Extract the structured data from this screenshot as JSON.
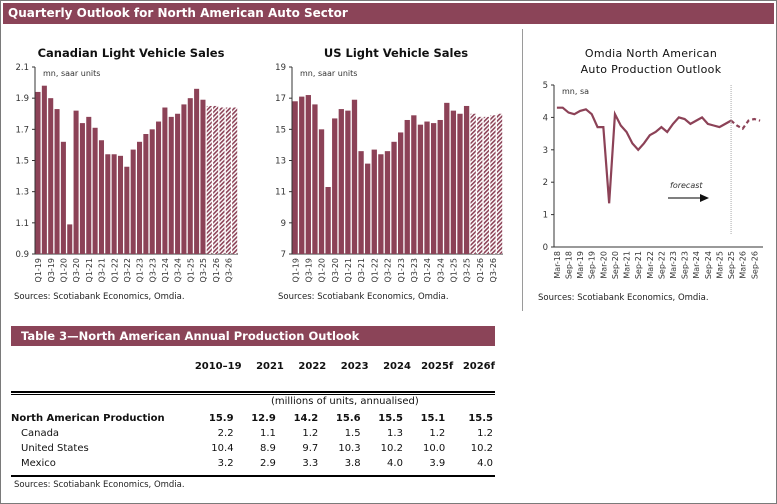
{
  "header": {
    "title": "Quarterly Outlook for North American Auto Sector"
  },
  "colors": {
    "brand": "#8b4458",
    "bar": "#8c4257"
  },
  "chart_data": [
    {
      "type": "bar",
      "title": "Canadian Light Vehicle Sales",
      "unit_label": "mn, saar units",
      "categories": [
        "Q1-19",
        "Q2-19",
        "Q3-19",
        "Q4-19",
        "Q1-20",
        "Q2-20",
        "Q3-20",
        "Q4-20",
        "Q1-21",
        "Q2-21",
        "Q3-21",
        "Q4-21",
        "Q1-22",
        "Q2-22",
        "Q3-22",
        "Q4-22",
        "Q1-23",
        "Q2-23",
        "Q3-23",
        "Q4-23",
        "Q1-24",
        "Q2-24",
        "Q3-24",
        "Q4-24",
        "Q1-25",
        "Q2-25",
        "Q3-25",
        "Q4-25",
        "Q1-26",
        "Q2-26",
        "Q3-26",
        "Q4-26"
      ],
      "tick_labels": [
        "Q1-19",
        "Q3-19",
        "Q1-20",
        "Q3-20",
        "Q1-21",
        "Q3-21",
        "Q1-22",
        "Q3-22",
        "Q1-23",
        "Q3-23",
        "Q1-24",
        "Q3-24",
        "Q1-25",
        "Q3-25",
        "Q1-26",
        "Q3-26"
      ],
      "values": [
        1.94,
        1.98,
        1.9,
        1.83,
        1.62,
        1.09,
        1.82,
        1.74,
        1.78,
        1.71,
        1.63,
        1.54,
        1.54,
        1.53,
        1.46,
        1.57,
        1.62,
        1.67,
        1.7,
        1.75,
        1.84,
        1.78,
        1.8,
        1.86,
        1.9,
        1.96,
        1.89,
        1.85,
        1.85,
        1.84,
        1.84,
        1.84
      ],
      "forecast_from": "Q4-25",
      "ylim": [
        0.9,
        2.1
      ],
      "yticks": [
        "0.9",
        "1.1",
        "1.3",
        "1.5",
        "1.7",
        "1.9",
        "2.1"
      ],
      "source": "Sources: Scotiabank Economics, Omdia."
    },
    {
      "type": "bar",
      "title": "US Light Vehicle Sales",
      "unit_label": "mn, saar units",
      "categories": [
        "Q1-19",
        "Q2-19",
        "Q3-19",
        "Q4-19",
        "Q1-20",
        "Q2-20",
        "Q3-20",
        "Q4-20",
        "Q1-21",
        "Q2-21",
        "Q3-21",
        "Q4-21",
        "Q1-22",
        "Q2-22",
        "Q3-22",
        "Q4-22",
        "Q1-23",
        "Q2-23",
        "Q3-23",
        "Q4-23",
        "Q1-24",
        "Q2-24",
        "Q3-24",
        "Q4-24",
        "Q1-25",
        "Q2-25",
        "Q3-25",
        "Q4-25",
        "Q1-26",
        "Q2-26",
        "Q3-26",
        "Q4-26"
      ],
      "tick_labels": [
        "Q1-19",
        "Q3-19",
        "Q1-20",
        "Q3-20",
        "Q1-21",
        "Q3-21",
        "Q1-22",
        "Q3-22",
        "Q1-23",
        "Q3-23",
        "Q1-24",
        "Q3-24",
        "Q1-25",
        "Q3-25",
        "Q1-26",
        "Q3-26"
      ],
      "values": [
        16.8,
        17.1,
        17.2,
        16.6,
        15.0,
        11.3,
        15.7,
        16.3,
        16.2,
        16.9,
        13.6,
        12.8,
        13.7,
        13.4,
        13.6,
        14.2,
        14.8,
        15.6,
        15.9,
        15.3,
        15.5,
        15.4,
        15.6,
        16.7,
        16.2,
        16.0,
        16.5,
        16.0,
        15.8,
        15.8,
        15.9,
        16.0
      ],
      "forecast_from": "Q4-25",
      "ylim": [
        7,
        19
      ],
      "yticks": [
        "7",
        "9",
        "11",
        "13",
        "15",
        "17",
        "19"
      ],
      "source": "Sources: Scotiabank Economics, Omdia."
    },
    {
      "type": "line",
      "title": [
        "Omdia North American",
        "Auto Production Outlook"
      ],
      "unit_label": "mn, sa",
      "x": [
        "Mar-18",
        "Jun-18",
        "Sep-18",
        "Dec-18",
        "Mar-19",
        "Jun-19",
        "Sep-19",
        "Dec-19",
        "Mar-20",
        "Jun-20",
        "Sep-20",
        "Dec-20",
        "Mar-21",
        "Jun-21",
        "Sep-21",
        "Dec-21",
        "Mar-22",
        "Jun-22",
        "Sep-22",
        "Dec-22",
        "Mar-23",
        "Jun-23",
        "Sep-23",
        "Dec-23",
        "Mar-24",
        "Jun-24",
        "Sep-24",
        "Dec-24",
        "Mar-25",
        "Jun-25",
        "Sep-25",
        "Dec-25",
        "Mar-26",
        "Jun-26",
        "Sep-26",
        "Dec-26"
      ],
      "values": [
        4.3,
        4.3,
        4.15,
        4.1,
        4.2,
        4.25,
        4.1,
        3.7,
        3.7,
        1.35,
        4.1,
        3.75,
        3.55,
        3.2,
        3.0,
        3.2,
        3.45,
        3.55,
        3.7,
        3.55,
        3.8,
        4.0,
        3.95,
        3.8,
        3.9,
        4.0,
        3.8,
        3.75,
        3.7,
        3.8,
        3.9,
        3.75,
        3.65,
        3.9,
        3.95,
        3.9
      ],
      "forecast_from": "Sep-25",
      "tick_labels": [
        "Mar-18",
        "Sep-18",
        "Mar-19",
        "Sep-19",
        "Mar-20",
        "Sep-20",
        "Mar-21",
        "Sep-21",
        "Mar-22",
        "Sep-22",
        "Mar-23",
        "Sep-23",
        "Mar-24",
        "Sep-24",
        "Mar-25",
        "Sep-25",
        "Mar-26",
        "Sep-26"
      ],
      "ylim": [
        0,
        5
      ],
      "yticks": [
        "0",
        "1",
        "2",
        "3",
        "4",
        "5"
      ],
      "annotation": "forecast",
      "source": "Sources: Scotiabank Economics, Omdia."
    }
  ],
  "table": {
    "title": "Table 3—North American Annual Production Outlook",
    "columns": [
      "2010–19",
      "2021",
      "2022",
      "2023",
      "2024",
      "2025f",
      "2026f"
    ],
    "units": "(millions of units, annualised)",
    "rows": [
      {
        "label": "North American Production",
        "values": [
          "15.9",
          "12.9",
          "14.2",
          "15.6",
          "15.5",
          "15.1",
          "15.5"
        ]
      },
      {
        "label": "Canada",
        "values": [
          "2.2",
          "1.1",
          "1.2",
          "1.5",
          "1.3",
          "1.2",
          "1.2"
        ]
      },
      {
        "label": "United States",
        "values": [
          "10.4",
          "8.9",
          "9.7",
          "10.3",
          "10.2",
          "10.0",
          "10.2"
        ]
      },
      {
        "label": "Mexico",
        "values": [
          "3.2",
          "2.9",
          "3.3",
          "3.8",
          "4.0",
          "3.9",
          "4.0"
        ]
      }
    ],
    "source": "Sources: Scotiabank Economics, Omdia."
  }
}
